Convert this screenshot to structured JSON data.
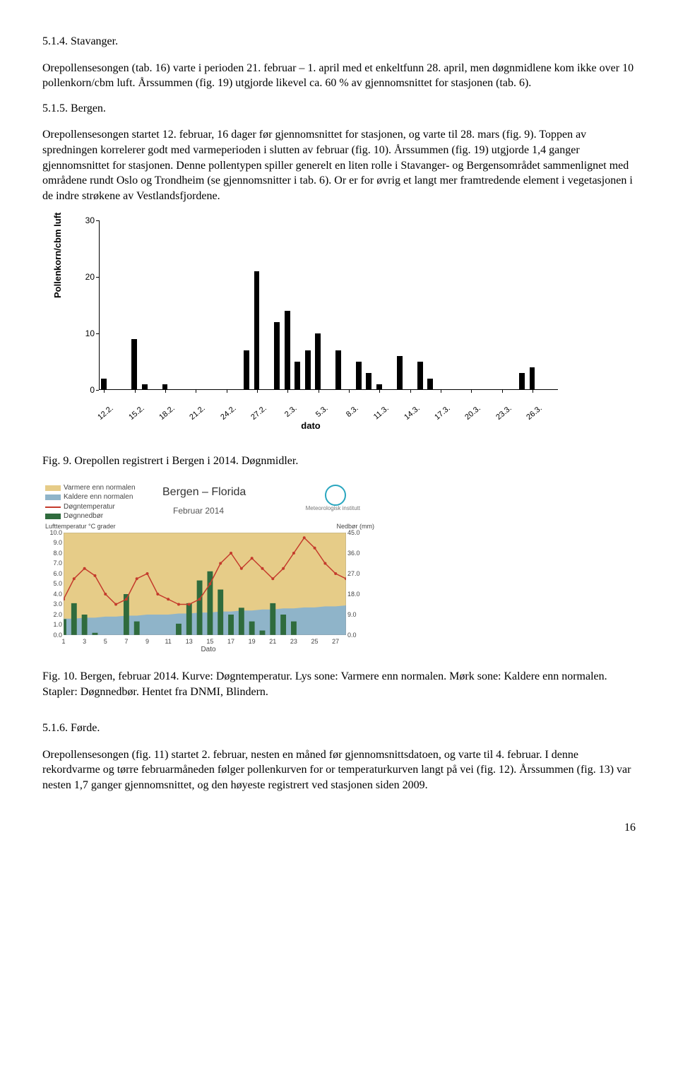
{
  "text": {
    "h1": "5.1.4. Stavanger.",
    "p1": "Orepollensesongen (tab. 16) varte i perioden 21. februar – 1. april med et enkeltfunn 28. april, men døgnmidlene kom ikke over 10 pollenkorn/cbm luft. Årssummen (fig. 19) utgjorde likevel ca. 60 % av gjennomsnittet for stasjonen (tab. 6).",
    "h2": "5.1.5. Bergen.",
    "p2": "Orepollensesongen startet 12. februar, 16 dager før gjennomsnittet for stasjonen, og varte til 28. mars (fig. 9). Toppen av spredningen korrelerer godt med varmeperioden i slutten av februar (fig. 10). Årssummen (fig. 19) utgjorde 1,4 ganger gjennomsnittet for stasjonen. Denne pollentypen spiller generelt en liten rolle i Stavanger- og Bergensområdet sammenlignet med områdene rundt Oslo og Trondheim (se gjennomsnitter i tab. 6). Or er for øvrig et langt mer framtredende element i vegetasjonen i de indre strøkene av Vestlandsfjordene.",
    "cap1": "Fig. 9. Orepollen registrert i Bergen i 2014. Døgnmidler.",
    "cap2": "Fig. 10. Bergen, februar 2014.  Kurve: Døgntemperatur. Lys sone: Varmere enn normalen. Mørk sone: Kaldere enn normalen. Stapler: Døgnnedbør. Hentet fra DNMI, Blindern.",
    "h3": "5.1.6. Førde.",
    "p3": "Orepollensesongen (fig. 11) startet 2. februar, nesten en måned før gjennomsnittsdatoen, og varte til 4. februar. I denne rekordvarme og tørre februarmåneden følger pollenkurven for or temperaturkurven langt på vei (fig. 12). Årssummen (fig. 13) var nesten 1,7 ganger gjennomsnittet, og den høyeste registrert ved stasjonen siden 2009.",
    "page": "16"
  },
  "chart1": {
    "type": "bar",
    "ylabel": "Pollenkorn/cbm luft",
    "xlabel": "dato",
    "ylim": [
      0,
      30
    ],
    "yticks": [
      0,
      10,
      20,
      30
    ],
    "xticks": [
      "12.2.",
      "15.2.",
      "18.2.",
      "21.2.",
      "24.2.",
      "27.2.",
      "2.3.",
      "5.3.",
      "8.3.",
      "11.3.",
      "14.3.",
      "17.3.",
      "20.3.",
      "23.3.",
      "26.3."
    ],
    "xtick_step_days": 3,
    "total_days": 45,
    "bar_color": "#000000",
    "background_color": "#ffffff",
    "values": [
      2,
      0,
      0,
      9,
      1,
      0,
      1,
      0,
      0,
      0,
      0,
      0,
      0,
      0,
      7,
      21,
      0,
      12,
      14,
      5,
      7,
      10,
      0,
      7,
      0,
      5,
      3,
      1,
      0,
      6,
      0,
      5,
      2,
      0,
      0,
      0,
      0,
      0,
      0,
      0,
      0,
      3,
      4,
      0,
      0
    ]
  },
  "chart2": {
    "type": "combo",
    "title": "Bergen – Florida",
    "subtitle": "Februar 2014",
    "y_left_label": "Lufttemperatur °C grader",
    "y_right_label": "Nedbør (mm)",
    "x_label": "Dato",
    "legend": [
      {
        "label": "Varmere enn normalen",
        "color": "#e6cc88",
        "type": "fill"
      },
      {
        "label": "Kaldere enn normalen",
        "color": "#8fb4c9",
        "type": "fill"
      },
      {
        "label": "Døgntemperatur",
        "color": "#c43b2c",
        "type": "line"
      },
      {
        "label": "Døgnnedbør",
        "color": "#2f6b3d",
        "type": "bar"
      }
    ],
    "met_label": "Meteorologisk institutt",
    "y_left_ticks": [
      0.0,
      1.0,
      2.0,
      3.0,
      4.0,
      5.0,
      6.0,
      7.0,
      8.0,
      9.0,
      10.0
    ],
    "y_right_ticks": [
      0.0,
      9.0,
      18.0,
      27.0,
      36.0,
      45.0
    ],
    "x_ticks": [
      1,
      3,
      5,
      7,
      9,
      11,
      13,
      15,
      17,
      19,
      21,
      23,
      25,
      27
    ],
    "days": 28,
    "background_color": "#e6cc88",
    "cold_color": "#8fb4c9",
    "temp_color": "#c43b2c",
    "precip_color": "#2f6b3d",
    "normal_temp": [
      1.6,
      1.6,
      1.7,
      1.7,
      1.8,
      1.8,
      1.9,
      1.9,
      2.0,
      2.0,
      2.0,
      2.1,
      2.1,
      2.2,
      2.2,
      2.3,
      2.3,
      2.4,
      2.4,
      2.5,
      2.5,
      2.6,
      2.6,
      2.7,
      2.7,
      2.8,
      2.8,
      2.9
    ],
    "temperature": [
      3.5,
      5.5,
      6.5,
      5.8,
      4.0,
      3.0,
      3.5,
      5.5,
      6.0,
      4.0,
      3.5,
      3.0,
      3.0,
      3.5,
      5.0,
      7.0,
      8.0,
      6.5,
      7.5,
      6.5,
      5.5,
      6.5,
      8.0,
      9.5,
      8.5,
      7.0,
      6.0,
      5.5
    ],
    "precip": [
      7,
      14,
      9,
      1,
      0,
      0,
      18,
      6,
      0,
      0,
      0,
      5,
      14,
      24,
      28,
      20,
      9,
      12,
      6,
      2,
      14,
      9,
      6,
      0,
      0,
      0,
      0,
      0
    ]
  }
}
